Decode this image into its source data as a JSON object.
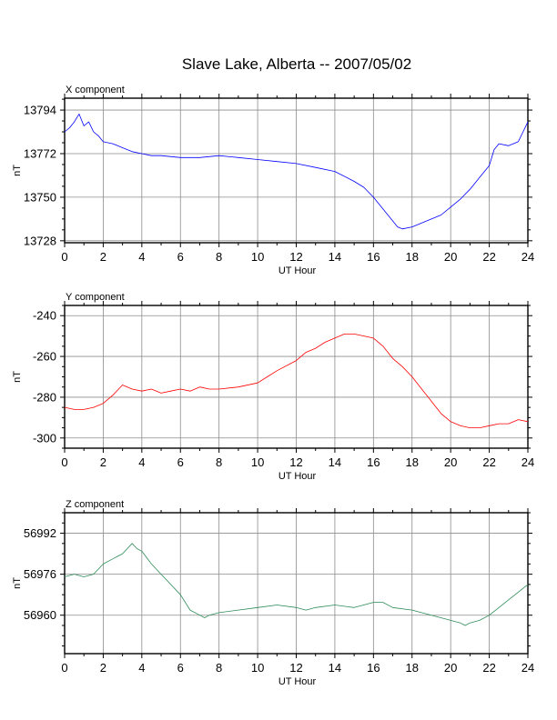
{
  "figure": {
    "title": "Slave Lake, Alberta -- 2007/05/02"
  },
  "chart_data": [
    {
      "type": "line",
      "panel_label": "X component",
      "xlabel": "UT Hour",
      "ylabel": "nT",
      "xlim": [
        0,
        24
      ],
      "ylim": [
        13727,
        13800
      ],
      "xticks": [
        0,
        2,
        4,
        6,
        8,
        10,
        12,
        14,
        16,
        18,
        20,
        22,
        24
      ],
      "yticks": [
        13728,
        13750,
        13772,
        13794
      ],
      "grid": true,
      "color": "#0000ff",
      "series": [
        {
          "x": [
            0,
            0.25,
            0.5,
            0.75,
            1,
            1.25,
            1.5,
            1.75,
            2,
            2.5,
            3,
            3.5,
            4,
            4.5,
            5,
            6,
            7,
            8,
            9,
            10,
            11,
            12,
            13,
            14,
            15,
            15.5,
            16,
            16.5,
            17,
            17.25,
            17.5,
            18,
            18.5,
            19,
            19.5,
            20,
            20.5,
            21,
            21.5,
            22,
            22.25,
            22.5,
            23,
            23.5,
            23.75,
            24
          ],
          "y": [
            13783,
            13785,
            13788,
            13792,
            13786,
            13788,
            13783,
            13781,
            13778,
            13777,
            13775,
            13773,
            13772,
            13771,
            13771,
            13770,
            13770,
            13771,
            13770,
            13769,
            13768,
            13767,
            13765,
            13763,
            13758,
            13755,
            13750,
            13744,
            13738,
            13735,
            13734,
            13735,
            13737,
            13739,
            13741,
            13745,
            13749,
            13754,
            13760,
            13766,
            13774,
            13777,
            13776,
            13778,
            13783,
            13788
          ]
        }
      ]
    },
    {
      "type": "line",
      "panel_label": "Y component",
      "xlabel": "UT Hour",
      "ylabel": "nT",
      "xlim": [
        0,
        24
      ],
      "ylim": [
        -305,
        -235
      ],
      "xticks": [
        0,
        2,
        4,
        6,
        8,
        10,
        12,
        14,
        16,
        18,
        20,
        22,
        24
      ],
      "yticks": [
        -300,
        -280,
        -260,
        -240
      ],
      "grid": true,
      "color": "#ff0000",
      "series": [
        {
          "x": [
            0,
            0.5,
            1,
            1.5,
            2,
            2.5,
            3,
            3.5,
            4,
            4.5,
            5,
            5.5,
            6,
            6.5,
            7,
            7.5,
            8,
            9,
            10,
            10.5,
            11,
            12,
            12.5,
            13,
            13.5,
            14,
            14.5,
            15,
            15.5,
            16,
            16.5,
            17,
            17.5,
            18,
            18.5,
            19,
            19.5,
            20,
            20.5,
            21,
            21.5,
            22,
            22.5,
            23,
            23.5,
            24
          ],
          "y": [
            -285,
            -286,
            -286,
            -285,
            -283,
            -279,
            -274,
            -276,
            -277,
            -276,
            -278,
            -277,
            -276,
            -277,
            -275,
            -276,
            -276,
            -275,
            -273,
            -270,
            -267,
            -262,
            -258,
            -256,
            -253,
            -251,
            -249,
            -249,
            -250,
            -251,
            -255,
            -261,
            -265,
            -270,
            -276,
            -282,
            -288,
            -292,
            -294,
            -295,
            -295,
            -294,
            -293,
            -293,
            -291,
            -292
          ]
        }
      ]
    },
    {
      "type": "line",
      "panel_label": "Z component",
      "xlabel": "UT Hour",
      "ylabel": "nT",
      "xlim": [
        0,
        24
      ],
      "ylim": [
        56945,
        57000
      ],
      "xticks": [
        0,
        2,
        4,
        6,
        8,
        10,
        12,
        14,
        16,
        18,
        20,
        22,
        24
      ],
      "yticks": [
        56960,
        56976,
        56992
      ],
      "grid": true,
      "color": "#2e8b57",
      "series": [
        {
          "x": [
            0,
            0.5,
            1,
            1.5,
            2,
            2.5,
            3,
            3.5,
            3.75,
            4,
            4.5,
            5,
            5.5,
            6,
            6.5,
            7,
            7.25,
            7.5,
            8,
            9,
            10,
            11,
            12,
            12.5,
            13,
            14,
            15,
            16,
            16.5,
            17,
            18,
            19,
            20,
            20.5,
            20.75,
            21,
            21.5,
            22,
            22.5,
            23,
            23.5,
            24
          ],
          "y": [
            56975,
            56976,
            56975,
            56976,
            56980,
            56982,
            56984,
            56988,
            56986,
            56985,
            56980,
            56976,
            56972,
            56968,
            56962,
            56960,
            56959,
            56960,
            56961,
            56962,
            56963,
            56964,
            56963,
            56962,
            56963,
            56964,
            56963,
            56965,
            56965,
            56963,
            56962,
            56960,
            56958,
            56957,
            56956,
            56957,
            56958,
            56960,
            56963,
            56966,
            56969,
            56972
          ]
        }
      ]
    }
  ]
}
